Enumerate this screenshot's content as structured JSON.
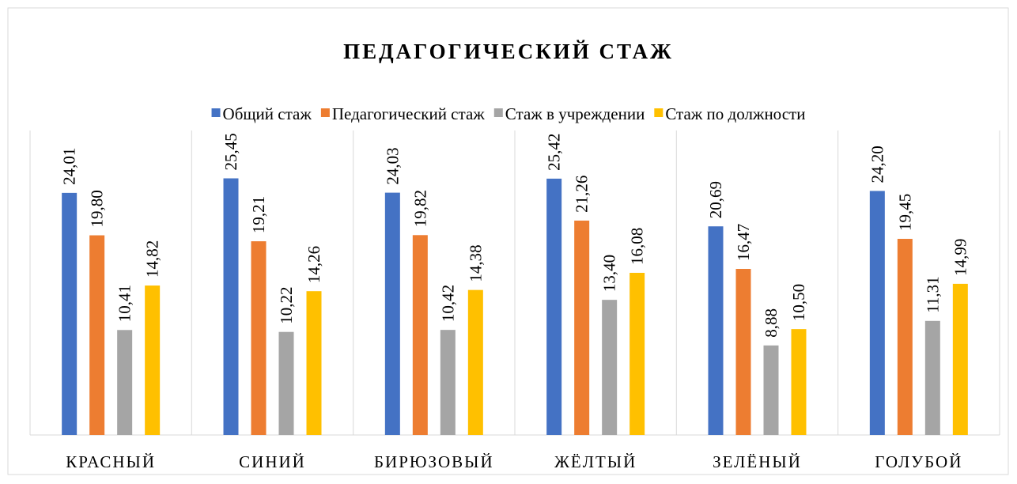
{
  "chart_data": {
    "type": "bar",
    "title": "ПЕДАГОГИЧЕСКИЙ СТАЖ",
    "categories": [
      "КРАСНЫЙ",
      "СИНИЙ",
      "БИРЮЗОВЫЙ",
      "ЖЁЛТЫЙ",
      "ЗЕЛЁНЫЙ",
      "ГОЛУБОЙ"
    ],
    "series": [
      {
        "name": "Общий стаж",
        "color": "#4472c4",
        "values": [
          24.01,
          25.45,
          24.03,
          25.42,
          20.69,
          24.2
        ],
        "value_labels": [
          "24,01",
          "25,45",
          "24,03",
          "25,42",
          "20,69",
          "24,20"
        ]
      },
      {
        "name": "Педагогический стаж",
        "color": "#ed7d31",
        "values": [
          19.8,
          19.21,
          19.82,
          21.26,
          16.47,
          19.45
        ],
        "value_labels": [
          "19,80",
          "19,21",
          "19,82",
          "21,26",
          "16,47",
          "19,45"
        ]
      },
      {
        "name": "Стаж в учреждении",
        "color": "#a5a5a5",
        "values": [
          10.41,
          10.22,
          10.42,
          13.4,
          8.88,
          11.31
        ],
        "value_labels": [
          "10,41",
          "10,22",
          "10,42",
          "13,40",
          "8,88",
          "11,31"
        ]
      },
      {
        "name": "Стаж по должности",
        "color": "#ffc000",
        "values": [
          14.82,
          14.26,
          14.38,
          16.08,
          10.5,
          14.99
        ],
        "value_labels": [
          "14,82",
          "14,26",
          "14,38",
          "16,08",
          "10,50",
          "14,99"
        ]
      }
    ],
    "ylim": [
      0,
      30
    ],
    "legend": "top"
  }
}
